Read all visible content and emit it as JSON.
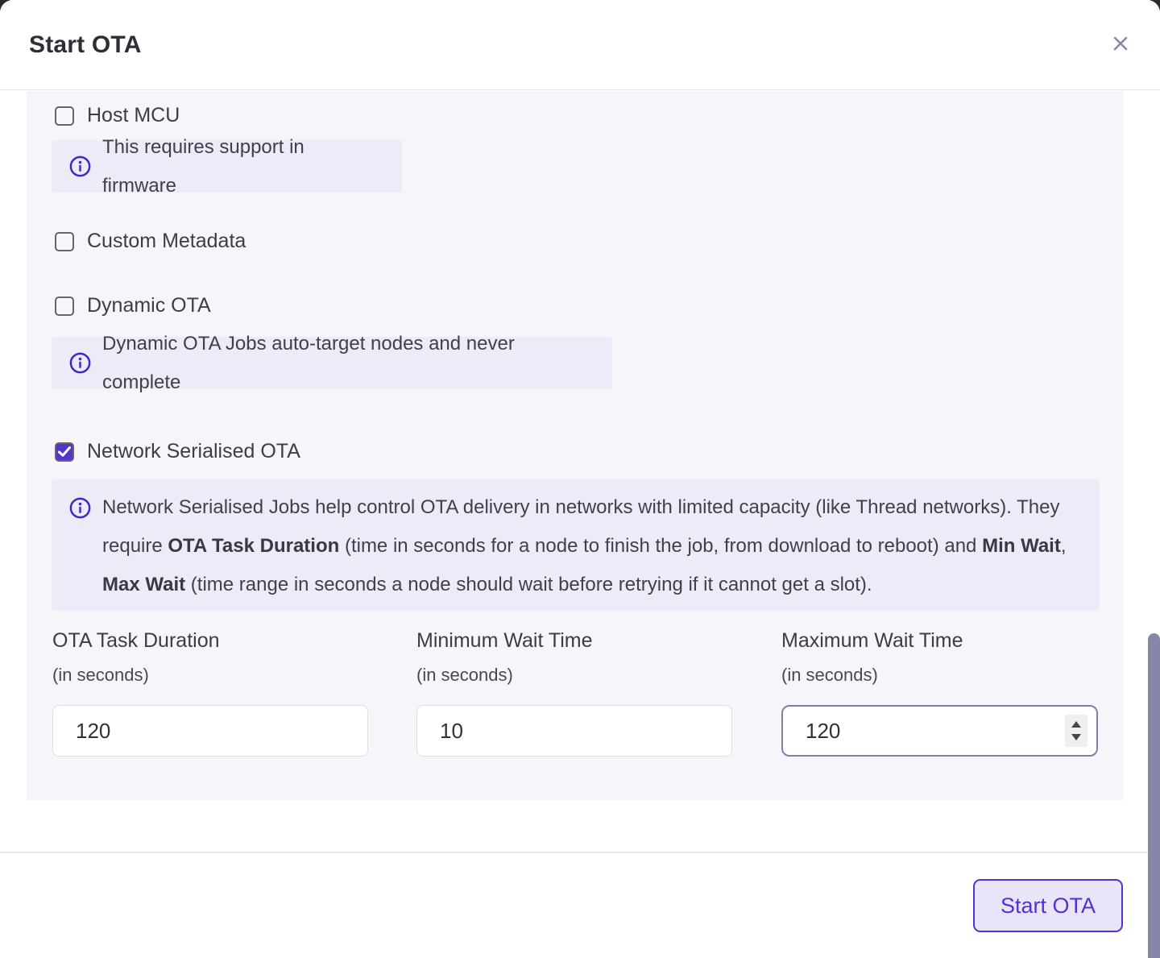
{
  "dialog": {
    "title": "Start OTA"
  },
  "options": [
    {
      "label": "Host MCU",
      "checked": false,
      "info": "This requires support in firmware"
    },
    {
      "label": "Custom Metadata",
      "checked": false
    },
    {
      "label": "Dynamic OTA",
      "checked": false,
      "info": "Dynamic OTA Jobs auto-target nodes and never complete"
    },
    {
      "label": "Network Serialised OTA",
      "checked": true
    }
  ],
  "network_info": {
    "segments": [
      {
        "t": "Network Serialised Jobs help control OTA delivery in networks with limited capacity (like Thread networks). They require "
      },
      {
        "t": "OTA Task Duration",
        "b": true
      },
      {
        "t": " (time in seconds for a node to finish the job, from download to reboot) and "
      },
      {
        "t": "Min Wait",
        "b": true
      },
      {
        "t": ", "
      },
      {
        "t": "Max Wait",
        "b": true
      },
      {
        "t": " (time range in seconds a node should wait before retrying if it cannot get a slot)."
      }
    ]
  },
  "fields": [
    {
      "label": "OTA Task Duration",
      "unit": "(in seconds)",
      "value": "120"
    },
    {
      "label": "Minimum Wait Time",
      "unit": "(in seconds)",
      "value": "10"
    },
    {
      "label": "Maximum Wait Time",
      "unit": "(in seconds)",
      "value": "120"
    }
  ],
  "footer": {
    "submit_label": "Start OTA"
  },
  "colors": {
    "accent_purple": "#5634c9",
    "button_purple": "#5530d2",
    "button_fill": "#e9e5f8",
    "info_icon": "#4127c4",
    "info_box_bg": "#ecebf8",
    "panel_bg": "#f5f5fa",
    "scrollbar": "#8687a8",
    "close_icon": "#8a8aa8",
    "title_text": "#2f2e37",
    "body_text": "#3e3d45"
  }
}
